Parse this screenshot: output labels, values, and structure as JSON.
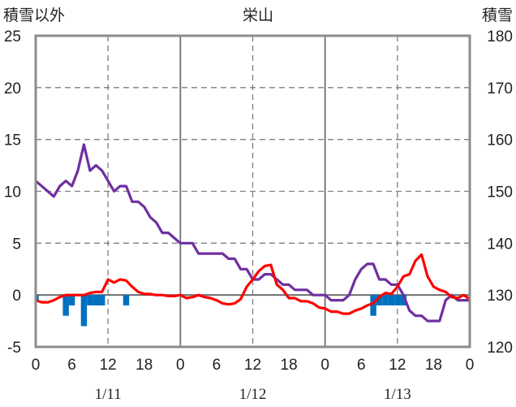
{
  "chart_data": {
    "type": "line",
    "title": "栄山",
    "left_axis": {
      "label": "積雪以外",
      "ylim": [
        -5,
        25
      ],
      "ticks": [
        "-5",
        "0",
        "5",
        "10",
        "15",
        "20",
        "25"
      ]
    },
    "right_axis": {
      "label": "積雪",
      "ylim": [
        120,
        180
      ],
      "ticks": [
        "120",
        "130",
        "140",
        "150",
        "160",
        "170",
        "180"
      ]
    },
    "x_hour_range": [
      0,
      72
    ],
    "x_ticks": [
      "0",
      "6",
      "12",
      "18",
      "0",
      "6",
      "12",
      "18",
      "0",
      "6",
      "12",
      "18",
      "0"
    ],
    "date_labels": [
      "1/11",
      "1/12",
      "1/13"
    ],
    "grid": true,
    "series": [
      {
        "axis": "right",
        "color": "#7030a0",
        "x": [
          0,
          1,
          2,
          3,
          4,
          5,
          6,
          7,
          8,
          9,
          10,
          11,
          12,
          13,
          14,
          15,
          16,
          17,
          18,
          19,
          20,
          21,
          22,
          23,
          24,
          25,
          26,
          27,
          28,
          29,
          30,
          31,
          32,
          33,
          34,
          35,
          36,
          37,
          38,
          39,
          40,
          41,
          42,
          43,
          44,
          45,
          46,
          47,
          48,
          49,
          50,
          51,
          52,
          53,
          54,
          55,
          56,
          57,
          58,
          59,
          60,
          61,
          62,
          63,
          64,
          65,
          66,
          67,
          68,
          69,
          70,
          71,
          72
        ],
        "values": [
          152,
          151,
          150,
          149,
          151,
          152,
          151,
          154,
          159,
          154,
          155,
          154,
          152,
          150,
          151,
          151,
          148,
          148,
          147,
          145,
          144,
          142,
          142,
          141,
          140,
          140,
          140,
          138,
          138,
          138,
          138,
          138,
          137,
          137,
          135,
          135,
          133,
          133,
          134,
          134,
          133,
          132,
          132,
          131,
          131,
          131,
          130,
          130,
          130,
          129,
          129,
          129,
          130,
          133,
          135,
          136,
          136,
          133,
          133,
          132,
          132,
          130,
          127,
          126,
          126,
          125,
          125,
          125,
          129,
          130,
          129,
          129,
          129
        ]
      },
      {
        "axis": "left",
        "color": "#ff0000",
        "x": [
          0,
          1,
          2,
          3,
          4,
          5,
          6,
          7,
          8,
          9,
          10,
          11,
          12,
          13,
          14,
          15,
          16,
          17,
          18,
          19,
          20,
          21,
          22,
          23,
          24,
          25,
          26,
          27,
          28,
          29,
          30,
          31,
          32,
          33,
          34,
          35,
          36,
          37,
          38,
          39,
          40,
          41,
          42,
          43,
          44,
          45,
          46,
          47,
          48,
          49,
          50,
          51,
          52,
          53,
          54,
          55,
          56,
          57,
          58,
          59,
          60,
          61,
          62,
          63,
          64,
          65,
          66,
          67,
          68,
          69,
          70,
          71,
          72
        ],
        "values": [
          -0.5,
          -0.7,
          -0.7,
          -0.5,
          -0.2,
          0,
          0,
          0,
          0,
          0.2,
          0.3,
          0.3,
          1.5,
          1.2,
          1.5,
          1.4,
          0.8,
          0.3,
          0.1,
          0.1,
          0,
          0,
          -0.1,
          -0.1,
          0,
          -0.3,
          -0.2,
          0,
          -0.2,
          -0.3,
          -0.5,
          -0.8,
          -0.9,
          -0.8,
          -0.4,
          0.8,
          1.5,
          2.3,
          2.8,
          2.9,
          1,
          0.5,
          -0.3,
          -0.3,
          -0.6,
          -0.6,
          -0.8,
          -1.2,
          -1.3,
          -1.6,
          -1.6,
          -1.8,
          -1.8,
          -1.5,
          -1.3,
          -1.0,
          -0.8,
          -0.2,
          0.2,
          0.1,
          0.8,
          1.8,
          2.0,
          3.3,
          3.9,
          1.8,
          0.8,
          0.5,
          0.3,
          -0.2,
          -0.3,
          0,
          -0.4
        ]
      },
      {
        "axis": "left",
        "color": "#0070c0",
        "chart_type": "bar",
        "x": [
          0,
          5,
          6,
          8,
          9,
          10,
          11,
          15,
          56,
          57,
          58,
          59,
          60,
          61
        ],
        "values": [
          -0.5,
          -2,
          -1,
          -3,
          -1,
          -1,
          -1,
          -1,
          -2,
          -1,
          -1,
          -1,
          -1,
          -1
        ]
      }
    ]
  }
}
